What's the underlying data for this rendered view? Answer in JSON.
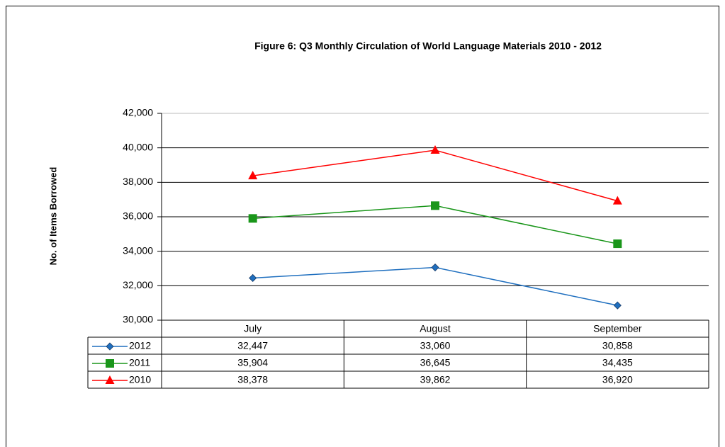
{
  "chart_data": {
    "type": "line",
    "title": "Figure 6: Q3 Monthly Circulation of World Language Materials 2010 - 2012",
    "y_label": "No. of Items Borrowed",
    "categories": [
      "July",
      "August",
      "September"
    ],
    "series": [
      {
        "name": "2012",
        "color": "#1f6fbf",
        "marker": "diamond",
        "values": [
          32447,
          33060,
          30858
        ],
        "value_labels": [
          "32,447",
          "33,060",
          "30,858"
        ]
      },
      {
        "name": "2011",
        "color": "#1a961a",
        "marker": "square",
        "values": [
          35904,
          36645,
          34435
        ],
        "value_labels": [
          "35,904",
          "36,645",
          "34,435"
        ]
      },
      {
        "name": "2010",
        "color": "#ff0000",
        "marker": "triangle",
        "values": [
          38378,
          39862,
          36920
        ],
        "value_labels": [
          "38,378",
          "39,862",
          "36,920"
        ]
      }
    ],
    "ylim": [
      30000,
      42000
    ],
    "yticks": [
      {
        "value": 30000,
        "label": "30,000"
      },
      {
        "value": 32000,
        "label": "32,000"
      },
      {
        "value": 34000,
        "label": "34,000"
      },
      {
        "value": 36000,
        "label": "36,000"
      },
      {
        "value": 38000,
        "label": "38,000"
      },
      {
        "value": 40000,
        "label": "40,000"
      },
      {
        "value": 42000,
        "label": "42,000"
      }
    ],
    "grid": true,
    "data_table": true
  }
}
